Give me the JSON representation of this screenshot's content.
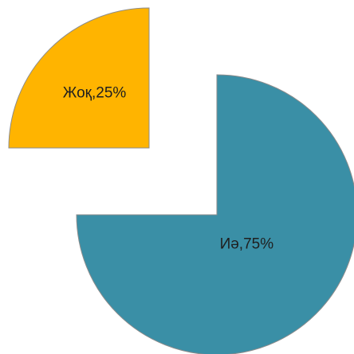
{
  "chart_data": {
    "type": "pie",
    "exploded": true,
    "slices": [
      {
        "label": "Иә",
        "value": 75,
        "color": "#3a8fa6"
      },
      {
        "label": "Жоқ",
        "value": 25,
        "color": "#ffb400"
      }
    ]
  }
}
